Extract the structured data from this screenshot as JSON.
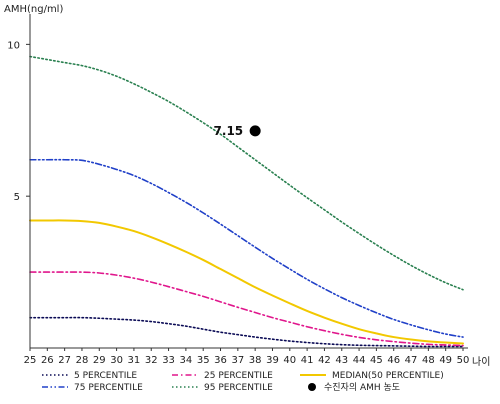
{
  "chart_data": {
    "type": "line",
    "ylabel": "AMH(ng/ml)",
    "xlabel": "나이",
    "x": [
      25,
      26,
      27,
      28,
      29,
      30,
      31,
      32,
      33,
      34,
      35,
      36,
      37,
      38,
      39,
      40,
      41,
      42,
      43,
      44,
      45,
      46,
      47,
      48,
      49,
      50
    ],
    "xlim": [
      25,
      50
    ],
    "ylim": [
      0,
      11
    ],
    "yticks": [
      5,
      10
    ],
    "grid": false,
    "legend_position": "bottom",
    "series": [
      {
        "name": "5 PERCENTILE",
        "color": "#0a0a55",
        "dash": "dotted",
        "values": [
          1.0,
          1.0,
          1.0,
          1.0,
          0.98,
          0.95,
          0.92,
          0.87,
          0.8,
          0.72,
          0.62,
          0.52,
          0.44,
          0.36,
          0.29,
          0.23,
          0.18,
          0.14,
          0.11,
          0.09,
          0.08,
          0.07,
          0.06,
          0.05,
          0.05,
          0.05
        ]
      },
      {
        "name": "25 PERCENTILE",
        "color": "#e0168c",
        "dash": "dashdot",
        "values": [
          2.5,
          2.5,
          2.5,
          2.5,
          2.47,
          2.4,
          2.3,
          2.17,
          2.02,
          1.86,
          1.7,
          1.52,
          1.34,
          1.17,
          1.0,
          0.85,
          0.7,
          0.57,
          0.45,
          0.35,
          0.27,
          0.21,
          0.16,
          0.12,
          0.1,
          0.08
        ]
      },
      {
        "name": "MEDIAN(50 PERCENTILE)",
        "color": "#f2c800",
        "dash": "solid",
        "values": [
          4.2,
          4.2,
          4.2,
          4.18,
          4.12,
          4.0,
          3.85,
          3.65,
          3.42,
          3.17,
          2.9,
          2.6,
          2.3,
          2.0,
          1.73,
          1.47,
          1.22,
          1.0,
          0.8,
          0.62,
          0.48,
          0.36,
          0.28,
          0.22,
          0.18,
          0.15
        ]
      },
      {
        "name": "75 PERCENTILE",
        "color": "#2040c8",
        "dash": "dashdotdot",
        "values": [
          6.2,
          6.2,
          6.2,
          6.18,
          6.05,
          5.88,
          5.68,
          5.42,
          5.12,
          4.8,
          4.45,
          4.08,
          3.7,
          3.32,
          2.95,
          2.6,
          2.26,
          1.95,
          1.66,
          1.4,
          1.16,
          0.94,
          0.76,
          0.6,
          0.46,
          0.36
        ]
      },
      {
        "name": "95 PERCENTILE",
        "color": "#2a8050",
        "dash": "dotted",
        "values": [
          9.6,
          9.5,
          9.4,
          9.3,
          9.15,
          8.95,
          8.7,
          8.42,
          8.12,
          7.78,
          7.42,
          7.04,
          6.62,
          6.2,
          5.78,
          5.36,
          4.95,
          4.55,
          4.15,
          3.77,
          3.4,
          3.05,
          2.72,
          2.42,
          2.15,
          1.92
        ]
      }
    ],
    "highlight": {
      "name": "수진자의 AMH 농도",
      "x": 38,
      "y": 7.15,
      "label": "7.15",
      "color": "#000000"
    }
  }
}
